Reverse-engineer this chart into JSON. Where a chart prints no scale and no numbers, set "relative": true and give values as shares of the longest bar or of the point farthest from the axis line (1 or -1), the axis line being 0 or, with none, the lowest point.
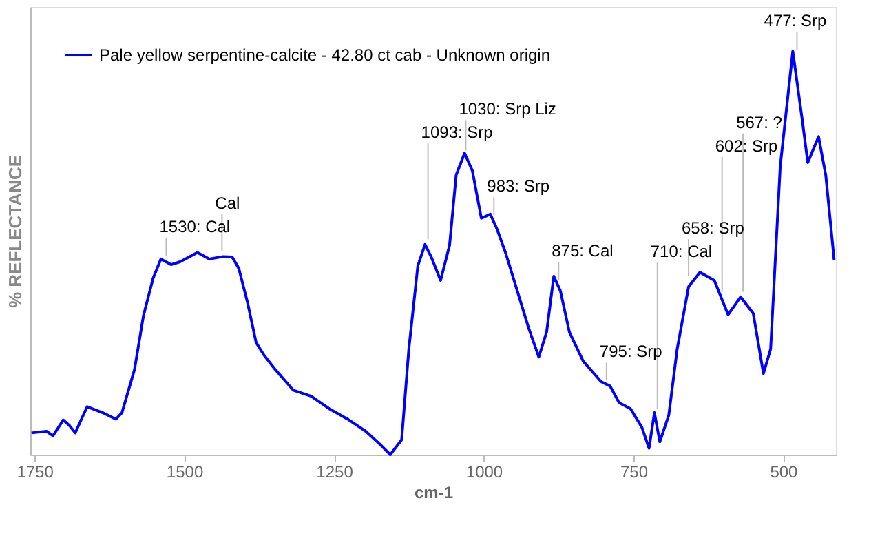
{
  "chart_data": {
    "type": "line",
    "relative": true,
    "xlabel": "cm-1",
    "ylabel": "% REFLECTANCE",
    "xlim": [
      1757,
      412
    ],
    "xticks": [
      1750,
      1500,
      1250,
      1000,
      750,
      500
    ],
    "grid": false,
    "legend": "top left",
    "marker": "none",
    "line_style": "solid",
    "x": [
      1755,
      1730,
      1719,
      1702,
      1692,
      1682,
      1662,
      1636,
      1614,
      1604,
      1583,
      1568,
      1552,
      1539,
      1522,
      1507,
      1478,
      1458,
      1435,
      1420,
      1409,
      1394,
      1380,
      1367,
      1348,
      1318,
      1288,
      1258,
      1227,
      1197,
      1174,
      1156,
      1137,
      1125,
      1110,
      1098,
      1087,
      1072,
      1057,
      1046,
      1032,
      1019,
      1004,
      989,
      978,
      963,
      944,
      925,
      908,
      895,
      883,
      872,
      857,
      834,
      804,
      789,
      774,
      755,
      736,
      724,
      715,
      706,
      691,
      677,
      658,
      639,
      615,
      592,
      571,
      550,
      533,
      521,
      505,
      484,
      468,
      459,
      441,
      429,
      415
    ],
    "series": [
      {
        "name": "Pale yellow serpentine-calcite - 42.80 ct cab - Unknown origin",
        "color": "#0000ff",
        "values": [
          0.054,
          0.058,
          0.047,
          0.086,
          0.073,
          0.054,
          0.119,
          0.104,
          0.088,
          0.104,
          0.211,
          0.345,
          0.437,
          0.485,
          0.471,
          0.478,
          0.501,
          0.485,
          0.491,
          0.49,
          0.462,
          0.375,
          0.278,
          0.247,
          0.211,
          0.16,
          0.145,
          0.114,
          0.088,
          0.058,
          0.027,
          0.0,
          0.037,
          0.262,
          0.468,
          0.521,
          0.488,
          0.432,
          0.519,
          0.693,
          0.747,
          0.704,
          0.586,
          0.596,
          0.56,
          0.498,
          0.406,
          0.314,
          0.242,
          0.304,
          0.442,
          0.406,
          0.304,
          0.232,
          0.181,
          0.17,
          0.129,
          0.114,
          0.068,
          0.016,
          0.104,
          0.032,
          0.098,
          0.262,
          0.416,
          0.452,
          0.432,
          0.347,
          0.391,
          0.35,
          0.201,
          0.262,
          0.714,
          1.0,
          0.827,
          0.724,
          0.788,
          0.693,
          0.483
        ]
      }
    ],
    "annotations": [
      {
        "text": "1530: Cal",
        "x": 1530,
        "y": 0.48
      },
      {
        "text": "Cal",
        "x": 1437,
        "y": 0.49
      },
      {
        "text": "1093: Srp",
        "x": 1093,
        "y": 0.52
      },
      {
        "text": "1030: Srp Liz",
        "x": 1030,
        "y": 0.74
      },
      {
        "text": "983: Srp",
        "x": 983,
        "y": 0.58
      },
      {
        "text": "875: Cal",
        "x": 875,
        "y": 0.42
      },
      {
        "text": "795: Srp",
        "x": 795,
        "y": 0.17
      },
      {
        "text": "710: Cal",
        "x": 710,
        "y": 0.1
      },
      {
        "text": "658: Srp",
        "x": 658,
        "y": 0.43
      },
      {
        "text": "602: Srp",
        "x": 602,
        "y": 0.39
      },
      {
        "text": "567: ?",
        "x": 567,
        "y": 0.39
      },
      {
        "text": "477: Srp",
        "x": 477,
        "y": 0.99
      }
    ]
  }
}
